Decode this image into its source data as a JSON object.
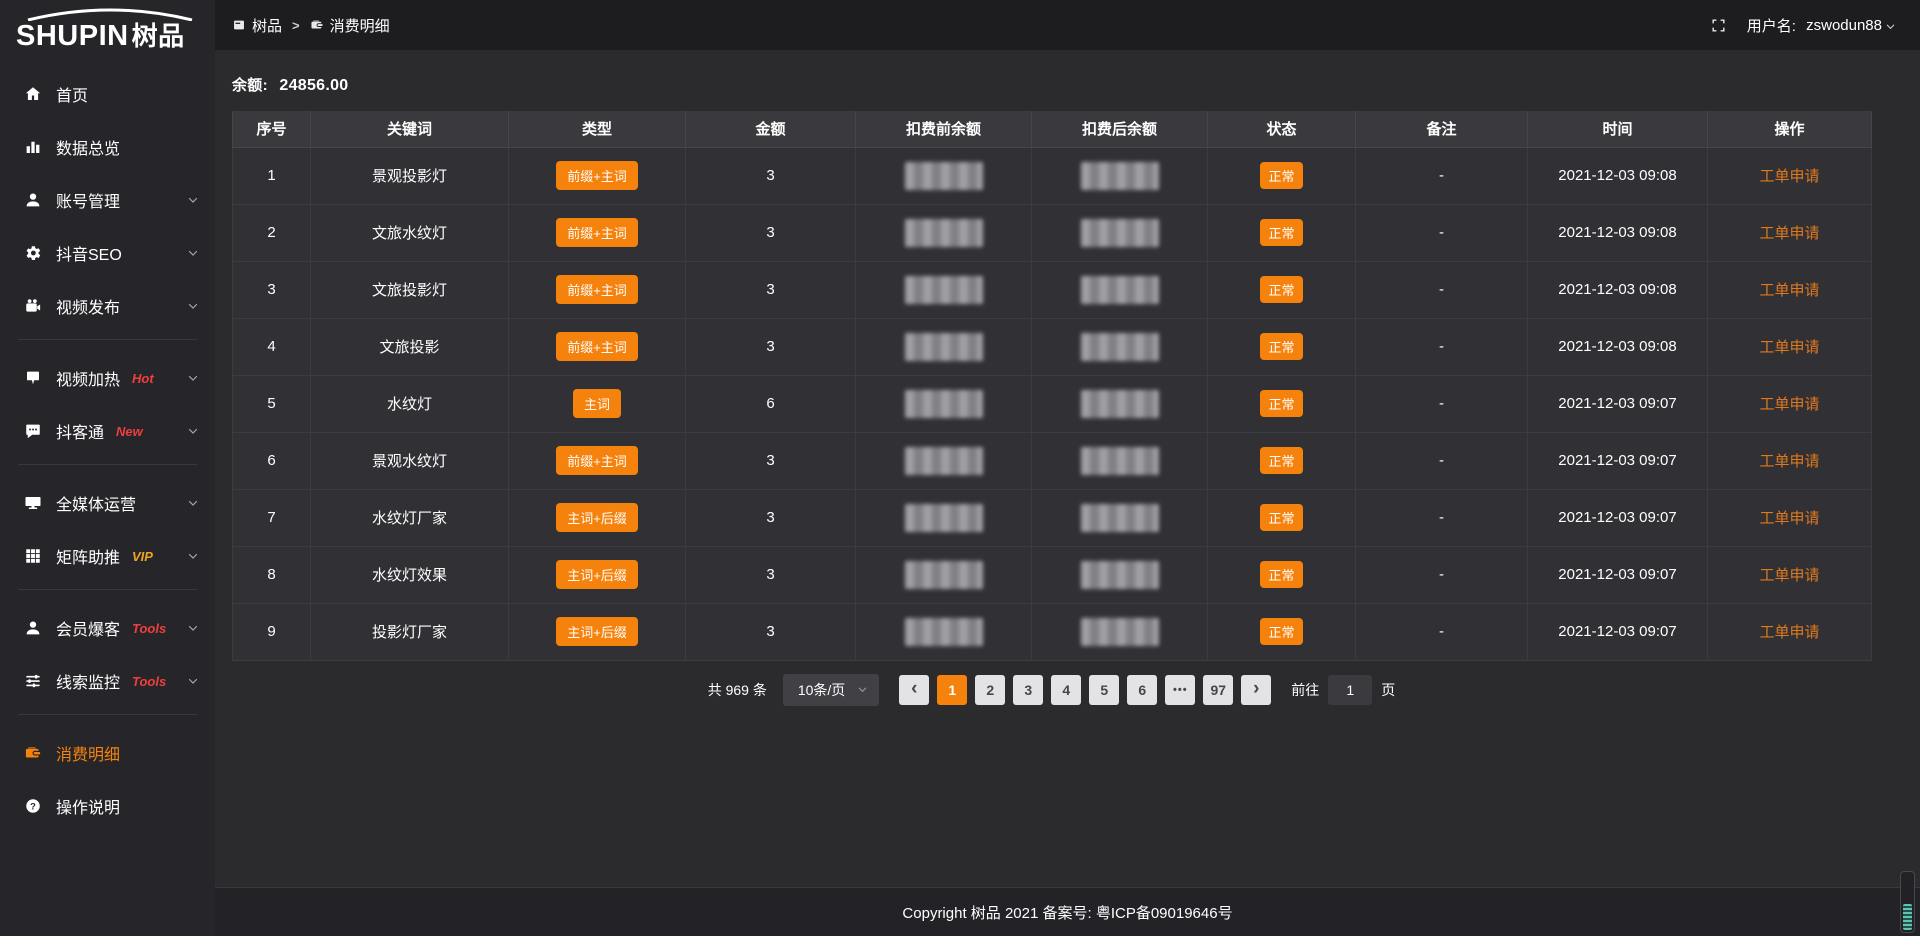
{
  "app": {
    "logo_text_en": "SHUPIN",
    "logo_text_cn": "树品"
  },
  "topbar": {
    "breadcrumb": {
      "section": "树品",
      "separator": ">",
      "page": "消费明细"
    },
    "username_label": "用户名:",
    "username": "zswodun88"
  },
  "sidebar": {
    "items": [
      {
        "type": "item",
        "key": "home",
        "icon": "home-icon",
        "label": "首页"
      },
      {
        "type": "item",
        "key": "data-overview",
        "icon": "bar-chart-icon",
        "label": "数据总览"
      },
      {
        "type": "item",
        "key": "account-management",
        "icon": "user-icon",
        "label": "账号管理",
        "chevron": true
      },
      {
        "type": "item",
        "key": "douyin-seo",
        "icon": "gear-icon",
        "label": "抖音SEO",
        "chevron": true
      },
      {
        "type": "item",
        "key": "video-publish",
        "icon": "video-camera-icon",
        "label": "视频发布",
        "chevron": true
      },
      {
        "type": "divider"
      },
      {
        "type": "item",
        "key": "video-heating",
        "icon": "flag-bubble-icon",
        "label": "视频加热",
        "tag": "Hot",
        "tag_color": "#f03e3e",
        "chevron": true
      },
      {
        "type": "item",
        "key": "douketong",
        "icon": "chat-dots-icon",
        "label": "抖客通",
        "tag": "New",
        "tag_color": "#f03e3e",
        "chevron": true
      },
      {
        "type": "divider"
      },
      {
        "type": "item",
        "key": "all-media-operation",
        "icon": "monitor-icon",
        "label": "全媒体运营",
        "chevron": true
      },
      {
        "type": "item",
        "key": "matrix-boost",
        "icon": "grid-icon",
        "label": "矩阵助推",
        "tag": "VIP",
        "tag_color": "#efa226",
        "chevron": true
      },
      {
        "type": "divider"
      },
      {
        "type": "item",
        "key": "member-attract",
        "icon": "user-icon",
        "label": "会员爆客",
        "tag": "Tools",
        "tag_color": "#f03e3e",
        "chevron": true
      },
      {
        "type": "item",
        "key": "lead-monitoring",
        "icon": "sliders-icon",
        "label": "线索监控",
        "tag": "Tools",
        "tag_color": "#f03e3e",
        "chevron": true
      },
      {
        "type": "divider"
      },
      {
        "type": "item",
        "key": "consumption-detail",
        "icon": "wallet-icon",
        "label": "消费明细",
        "active": true
      },
      {
        "type": "item",
        "key": "operation-guide",
        "icon": "question-icon",
        "label": "操作说明"
      }
    ]
  },
  "balance": {
    "label": "余额:",
    "value": "24856.00"
  },
  "table": {
    "columns": [
      {
        "key": "index",
        "label": "序号"
      },
      {
        "key": "keyword",
        "label": "关键词"
      },
      {
        "key": "type",
        "label": "类型"
      },
      {
        "key": "amount",
        "label": "金额"
      },
      {
        "key": "balance-before",
        "label": "扣费前余额"
      },
      {
        "key": "balance-after",
        "label": "扣费后余额"
      },
      {
        "key": "status",
        "label": "状态"
      },
      {
        "key": "remark",
        "label": "备注"
      },
      {
        "key": "time",
        "label": "时间"
      },
      {
        "key": "action",
        "label": "操作"
      }
    ],
    "rows": [
      {
        "index": "1",
        "keyword": "景观投影灯",
        "type_badge": "前缀+主词",
        "amount": "3",
        "balance_before_blurred": true,
        "balance_after_blurred": true,
        "status_badge": "正常",
        "remark": "-",
        "time": "2021-12-03 09:08",
        "action": "工单申请"
      },
      {
        "index": "2",
        "keyword": "文旅水纹灯",
        "type_badge": "前缀+主词",
        "amount": "3",
        "balance_before_blurred": true,
        "balance_after_blurred": true,
        "status_badge": "正常",
        "remark": "-",
        "time": "2021-12-03 09:08",
        "action": "工单申请"
      },
      {
        "index": "3",
        "keyword": "文旅投影灯",
        "type_badge": "前缀+主词",
        "amount": "3",
        "balance_before_blurred": true,
        "balance_after_blurred": true,
        "status_badge": "正常",
        "remark": "-",
        "time": "2021-12-03 09:08",
        "action": "工单申请"
      },
      {
        "index": "4",
        "keyword": "文旅投影",
        "type_badge": "前缀+主词",
        "amount": "3",
        "balance_before_blurred": true,
        "balance_after_blurred": true,
        "status_badge": "正常",
        "remark": "-",
        "time": "2021-12-03 09:08",
        "action": "工单申请"
      },
      {
        "index": "5",
        "keyword": "水纹灯",
        "type_badge": "主词",
        "amount": "6",
        "balance_before_blurred": true,
        "balance_after_blurred": true,
        "status_badge": "正常",
        "remark": "-",
        "time": "2021-12-03 09:07",
        "action": "工单申请"
      },
      {
        "index": "6",
        "keyword": "景观水纹灯",
        "type_badge": "前缀+主词",
        "amount": "3",
        "balance_before_blurred": true,
        "balance_after_blurred": true,
        "status_badge": "正常",
        "remark": "-",
        "time": "2021-12-03 09:07",
        "action": "工单申请"
      },
      {
        "index": "7",
        "keyword": "水纹灯厂家",
        "type_badge": "主词+后缀",
        "amount": "3",
        "balance_before_blurred": true,
        "balance_after_blurred": true,
        "status_badge": "正常",
        "remark": "-",
        "time": "2021-12-03 09:07",
        "action": "工单申请"
      },
      {
        "index": "8",
        "keyword": "水纹灯效果",
        "type_badge": "主词+后缀",
        "amount": "3",
        "balance_before_blurred": true,
        "balance_after_blurred": true,
        "status_badge": "正常",
        "remark": "-",
        "time": "2021-12-03 09:07",
        "action": "工单申请"
      },
      {
        "index": "9",
        "keyword": "投影灯厂家",
        "type_badge": "主词+后缀",
        "amount": "3",
        "balance_before_blurred": true,
        "balance_after_blurred": true,
        "status_badge": "正常",
        "remark": "-",
        "time": "2021-12-03 09:07",
        "action": "工单申请"
      }
    ]
  },
  "pagination": {
    "total_text": "共 969 条",
    "page_size": "10条/页",
    "prev_label": "‹",
    "next_label": "›",
    "pages": [
      "1",
      "2",
      "3",
      "4",
      "5",
      "6",
      "•••",
      "97"
    ],
    "active_page": "1",
    "goto_label": "前往",
    "goto_value": "1",
    "goto_suffix": "页"
  },
  "footer": {
    "copyright": "Copyright 树品 2021 备案号: 粤ICP备09019646号"
  },
  "colors": {
    "accent": "#f5820c",
    "link": "#e0791d",
    "red_tag": "#f03e3e",
    "vip_tag": "#efa226",
    "badge": "#f0810f"
  }
}
